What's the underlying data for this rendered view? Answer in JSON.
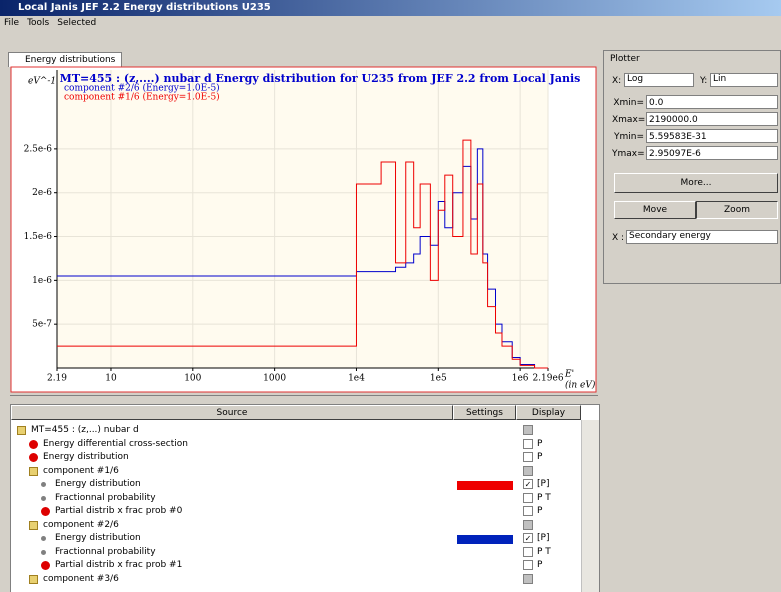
{
  "window": {
    "title": "Local Janis JEF 2.2 Energy distributions U235"
  },
  "menu": [
    "File",
    "Tools",
    "Selected"
  ],
  "tab": "Energy distributions",
  "chart_data": {
    "type": "line",
    "drawstyle": "steps-post",
    "title": "MT=455 : (z,....) nubar d Energy distribution for U235 from JEF 2.2 from Local Janis",
    "y_label": "eV^-1",
    "x_label": "E'",
    "x_unit": "(in eV)",
    "xscale": "log",
    "xlim": [
      2.19,
      2190000
    ],
    "xticks": [
      2.19,
      10,
      100,
      1000,
      {
        "value": 10000,
        "label": "1e4"
      },
      {
        "value": 100000,
        "label": "1e5"
      },
      {
        "value": 1000000,
        "label": "1e6"
      },
      {
        "value": 2190000,
        "label": "2.19e6"
      }
    ],
    "ylim": [
      0,
      3.4e-06
    ],
    "yticks": [
      {
        "value": 5e-07,
        "label": "5e-7"
      },
      {
        "value": 1e-06,
        "label": "1e-6"
      },
      {
        "value": 1.5e-06,
        "label": "1.5e-6"
      },
      {
        "value": 2e-06,
        "label": "2e-6"
      },
      {
        "value": 2.5e-06,
        "label": "2.5e-6"
      }
    ],
    "grid": true,
    "x": [
      2.19,
      10000,
      20000,
      30000,
      40000,
      50000,
      60000,
      80000,
      100000,
      120000,
      150000,
      200000,
      250000,
      300000,
      350000,
      400000,
      500000,
      600000,
      800000,
      1000000,
      1500000,
      2190000
    ],
    "series": [
      {
        "name": "component #2/6 (Energy=1.0E-5)",
        "color": "#0000cc",
        "values": [
          1.05e-06,
          1.1e-06,
          1.1e-06,
          1.15e-06,
          1.2e-06,
          1.3e-06,
          1.5e-06,
          1.4e-06,
          1.9e-06,
          1.6e-06,
          2e-06,
          2.3e-06,
          1.7e-06,
          2.5e-06,
          1.3e-06,
          9e-07,
          5e-07,
          3e-07,
          1.2e-07,
          4e-08,
          0,
          0
        ]
      },
      {
        "name": "component #1/6 (Energy=1.0E-5)",
        "color": "#ee0000",
        "values": [
          2.5e-07,
          2.1e-06,
          2.35e-06,
          1.2e-06,
          2.35e-06,
          1.6e-06,
          2.1e-06,
          1e-06,
          1.8e-06,
          2.2e-06,
          1.5e-06,
          2.6e-06,
          1.3e-06,
          2.1e-06,
          1.2e-06,
          7e-07,
          4e-07,
          2.5e-07,
          1e-07,
          3e-08,
          0,
          0
        ]
      }
    ]
  },
  "plotter": {
    "title": "Plotter",
    "x_label": "X:",
    "x_scale": "Log",
    "y_label": "Y:",
    "y_scale": "Lin",
    "fields": [
      {
        "label": "Xmin=",
        "value": "0.0"
      },
      {
        "label": "Xmax=",
        "value": "2190000.0"
      },
      {
        "label": "Ymin=",
        "value": "5.59583E-31"
      },
      {
        "label": "Ymax=",
        "value": "2.95097E-6"
      }
    ],
    "more": "More...",
    "move": "Move",
    "zoom": "Zoom",
    "axis_label": "X :",
    "axis_value": "Secondary energy"
  },
  "table": {
    "columns": [
      "Source",
      "Settings",
      "Display"
    ],
    "rows": [
      {
        "label": "MT=455 : (z,...) nubar d",
        "level": 0,
        "icon": "folder",
        "checked": false
      },
      {
        "label": "Energy differential cross-section",
        "level": 1,
        "icon": "red",
        "checked": false,
        "display": "P"
      },
      {
        "label": "Energy distribution",
        "level": 1,
        "icon": "red",
        "checked": false,
        "display": "P"
      },
      {
        "label": "component #1/6",
        "level": 1,
        "icon": "folder",
        "checked": false
      },
      {
        "label": "Energy distribution",
        "level": 2,
        "icon": "gray",
        "checked": true,
        "display": "[P]",
        "color": "#ee0000"
      },
      {
        "label": "Fractionnal probability",
        "level": 2,
        "icon": "gray",
        "checked": false,
        "display": "P T"
      },
      {
        "label": "Partial distrib x frac prob #0",
        "level": 2,
        "icon": "red",
        "checked": false,
        "display": "P"
      },
      {
        "label": "component #2/6",
        "level": 1,
        "icon": "folder",
        "checked": false
      },
      {
        "label": "Energy distribution",
        "level": 2,
        "icon": "gray",
        "checked": true,
        "display": "[P]",
        "color": "#0022bb"
      },
      {
        "label": "Fractionnal probability",
        "level": 2,
        "icon": "gray",
        "checked": false,
        "display": "P T"
      },
      {
        "label": "Partial distrib x frac prob #1",
        "level": 2,
        "icon": "red",
        "checked": false,
        "display": "P"
      },
      {
        "label": "component #3/6",
        "level": 1,
        "icon": "folder",
        "checked": false
      }
    ]
  }
}
